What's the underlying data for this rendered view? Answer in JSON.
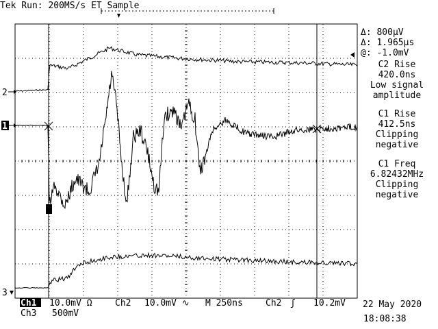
{
  "header": {
    "status_text": "Tek Run: 200MS/s ET Sample"
  },
  "cursors": {
    "delta_v": "Δ: 800µV",
    "delta_t": "Δ: 1.965µs",
    "at_v": "@: -1.0mV"
  },
  "measurements": [
    {
      "line1": "C2 Rise",
      "line2": "420.0ns",
      "line3": "Low signal",
      "line4": "amplitude"
    },
    {
      "line1": "C1 Rise",
      "line2": "412.5ns",
      "line3": "Clipping",
      "line4": "negative"
    },
    {
      "line1": "C1 Freq",
      "line2": "6.82432MHz",
      "line3": "Clipping",
      "line4": "negative"
    }
  ],
  "channel_markers": {
    "ch2": "2",
    "ch1": "1",
    "ch3": "3"
  },
  "footer": {
    "ch1_label": "Ch1",
    "ch1_scale": "10.0mV Ω",
    "ch2_label": "Ch2",
    "ch2_scale": "10.0mV ∿",
    "timebase": "M 250ns",
    "trigger_src": "Ch2",
    "trigger_slope": "ʃ",
    "trigger_level": "10.2mV",
    "ch3_label": "Ch3",
    "ch3_scale": "500mV",
    "date": "22 May 2020",
    "time": "18:08:38"
  },
  "colors": {
    "background": "#ffffff",
    "foreground": "#000000"
  }
}
